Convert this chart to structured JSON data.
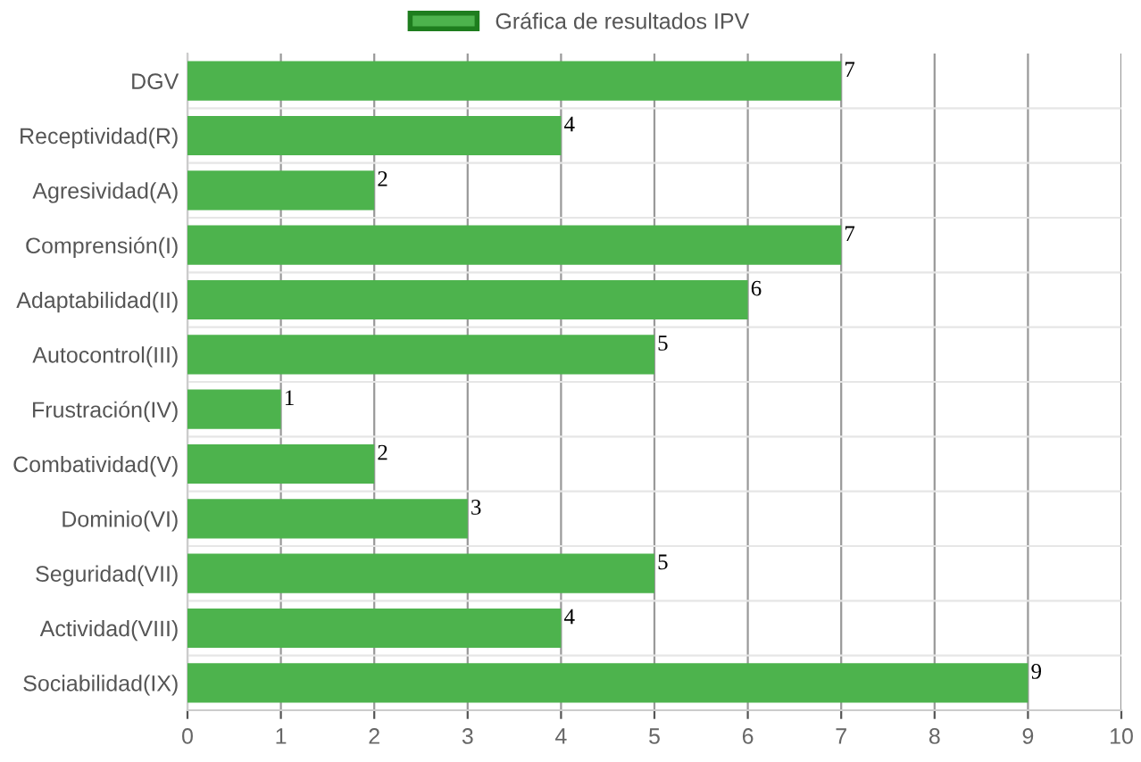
{
  "chart_data": {
    "type": "bar",
    "orientation": "horizontal",
    "categories": [
      "DGV",
      "Receptividad(R)",
      "Agresividad(A)",
      "Comprensión(I)",
      "Adaptabilidad(II)",
      "Autocontrol(III)",
      "Frustración(IV)",
      "Combatividad(V)",
      "Dominio(VI)",
      "Seguridad(VII)",
      "Actividad(VIII)",
      "Sociabilidad(IX)"
    ],
    "series": [
      {
        "name": "Gráfica de resultados IPV",
        "color": "#4db34d",
        "values": [
          7,
          4,
          2,
          7,
          6,
          5,
          1,
          2,
          3,
          5,
          4,
          9
        ]
      }
    ],
    "xlim": [
      0,
      10
    ],
    "xticks": [
      0,
      1,
      2,
      3,
      4,
      5,
      6,
      7,
      8,
      9,
      10
    ],
    "grid": true,
    "legend": "top",
    "data_labels": true
  }
}
